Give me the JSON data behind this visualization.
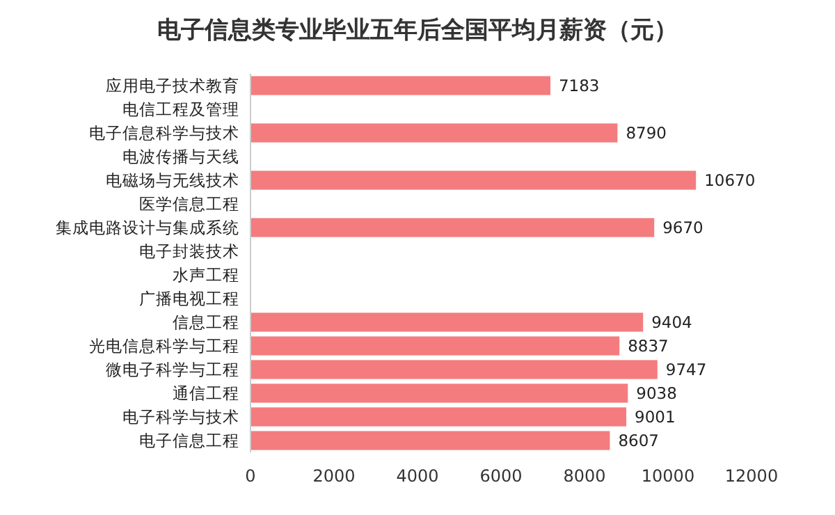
{
  "chart_data": {
    "type": "bar",
    "orientation": "horizontal",
    "title": "电子信息类专业毕业五年后全国平均月薪资（元）",
    "categories": [
      "应用电子技术教育",
      "电信工程及管理",
      "电子信息科学与技术",
      "电波传播与天线",
      "电磁场与无线技术",
      "医学信息工程",
      "集成电路设计与集成系统",
      "电子封装技术",
      "水声工程",
      "广播电视工程",
      "信息工程",
      "光电信息科学与工程",
      "微电子科学与工程",
      "通信工程",
      "电子科学与技术",
      "电子信息工程"
    ],
    "values": [
      7183,
      null,
      8790,
      null,
      10670,
      null,
      9670,
      null,
      null,
      null,
      9404,
      8837,
      9747,
      9038,
      9001,
      8607
    ],
    "color": "#f47c7e",
    "xlim": [
      0,
      12000
    ],
    "xticks": [
      0,
      2000,
      4000,
      6000,
      8000,
      10000,
      12000
    ],
    "data_labels": true
  }
}
